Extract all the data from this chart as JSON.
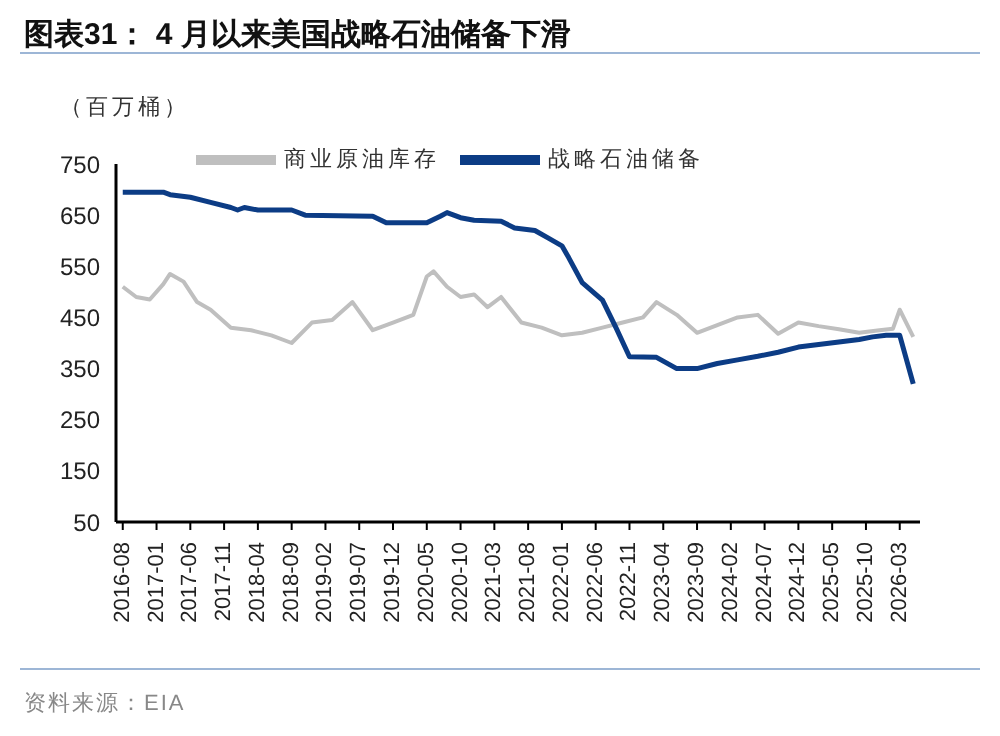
{
  "chart_data": {
    "type": "line",
    "title": "图表31：  4 月以来美国战略石油储备下滑",
    "ylabel": "（百万桶）",
    "annotations": [
      "资料来源：EIA"
    ],
    "xlim": [
      "2016-07",
      "2026-06"
    ],
    "xticks": [
      "2016-08",
      "2017-01",
      "2017-06",
      "2017-11",
      "2018-04",
      "2018-09",
      "2019-02",
      "2019-07",
      "2019-12",
      "2020-05",
      "2020-10",
      "2021-03",
      "2021-08",
      "2022-01",
      "2022-06",
      "2022-11",
      "2023-04",
      "2023-09",
      "2024-02",
      "2024-07",
      "2024-12",
      "2025-05",
      "2025-10",
      "2026-03"
    ],
    "ylim": [
      50,
      750
    ],
    "yticks": [
      50,
      150,
      250,
      350,
      450,
      550,
      650,
      750
    ],
    "legend": "top",
    "marker": "none",
    "line_style": "solid",
    "series": [
      {
        "name": "商业原油库存",
        "color": "#bfbfbf",
        "x": [
          "2016-08",
          "2016-10",
          "2016-12",
          "2017-02",
          "2017-03",
          "2017-05",
          "2017-07",
          "2017-09",
          "2017-12",
          "2018-03",
          "2018-06",
          "2018-09",
          "2018-12",
          "2019-03",
          "2019-06",
          "2019-09",
          "2019-12",
          "2020-03",
          "2020-05",
          "2020-06",
          "2020-08",
          "2020-10",
          "2020-12",
          "2021-02",
          "2021-04",
          "2021-07",
          "2021-10",
          "2022-01",
          "2022-04",
          "2022-07",
          "2022-10",
          "2023-01",
          "2023-03",
          "2023-06",
          "2023-09",
          "2023-12",
          "2024-03",
          "2024-06",
          "2024-09",
          "2024-12",
          "2025-03",
          "2025-06",
          "2025-09",
          "2025-12",
          "2026-02",
          "2026-03",
          "2026-05"
        ],
        "values": [
          510,
          490,
          485,
          515,
          535,
          520,
          480,
          465,
          430,
          425,
          415,
          400,
          440,
          445,
          480,
          425,
          440,
          455,
          530,
          540,
          510,
          490,
          495,
          470,
          490,
          440,
          430,
          415,
          420,
          430,
          440,
          450,
          480,
          455,
          420,
          435,
          450,
          455,
          418,
          440,
          433,
          427,
          420,
          425,
          428,
          465,
          412
        ]
      },
      {
        "name": "战略石油储备",
        "color": "#0c3c85",
        "x": [
          "2016-08",
          "2017-02",
          "2017-03",
          "2017-06",
          "2017-09",
          "2017-12",
          "2018-01",
          "2018-02",
          "2018-04",
          "2018-09",
          "2018-11",
          "2019-09",
          "2019-11",
          "2020-05",
          "2020-07",
          "2020-08",
          "2020-10",
          "2020-12",
          "2021-04",
          "2021-06",
          "2021-09",
          "2021-11",
          "2022-01",
          "2022-02",
          "2022-04",
          "2022-07",
          "2022-09",
          "2022-11",
          "2023-03",
          "2023-06",
          "2023-09",
          "2023-12",
          "2024-03",
          "2024-06",
          "2024-09",
          "2024-12",
          "2025-03",
          "2025-06",
          "2025-09",
          "2025-11",
          "2026-01",
          "2026-03",
          "2026-05"
        ],
        "values": [
          695,
          695,
          690,
          685,
          675,
          665,
          660,
          665,
          660,
          660,
          650,
          648,
          635,
          635,
          648,
          655,
          645,
          640,
          638,
          625,
          620,
          605,
          590,
          567,
          518,
          484,
          430,
          373,
          372,
          350,
          350,
          360,
          367,
          374,
          382,
          392,
          397,
          402,
          407,
          412,
          415,
          415,
          320
        ]
      }
    ]
  }
}
